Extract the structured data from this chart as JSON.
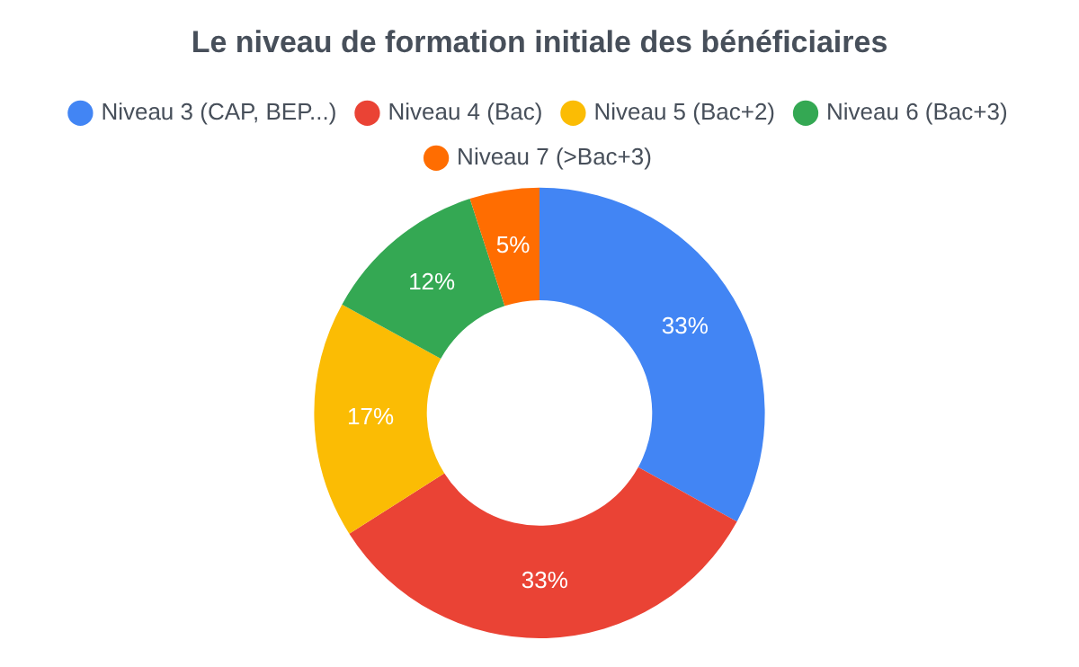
{
  "chart_data": {
    "type": "donut",
    "title": "Le niveau de formation initiale des bénéficiaires",
    "categories": [
      "Niveau 3 (CAP, BEP...)",
      "Niveau 4 (Bac)",
      "Niveau 5 (Bac+2)",
      "Niveau 6 (Bac+3)",
      "Niveau 7 (>Bac+3)"
    ],
    "values": [
      33,
      33,
      17,
      12,
      5
    ],
    "colors": [
      "#4285f4",
      "#ea4335",
      "#fbbc04",
      "#34a853",
      "#ff6d01"
    ],
    "value_labels": [
      "33%",
      "33%",
      "17%",
      "12%",
      "5%"
    ],
    "legend": "top"
  }
}
